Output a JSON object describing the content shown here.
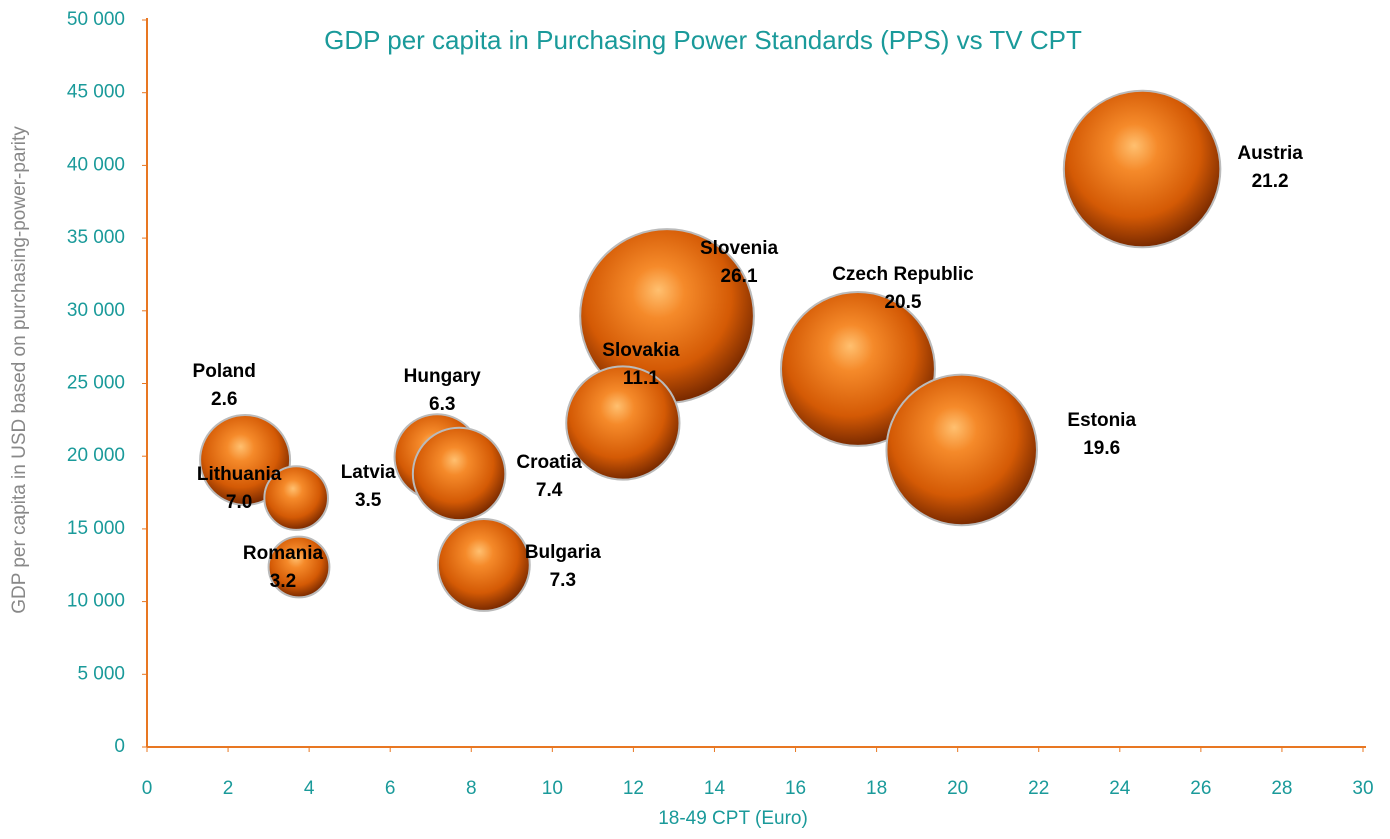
{
  "chart_data": {
    "type": "bubble",
    "title": "GDP per capita in Purchasing Power Standards (PPS) vs TV CPT",
    "x_label": "18-49 CPT (Euro)",
    "y_label": "GDP per capita in USD based on purchasing-power-parity",
    "categories": [
      "Austria",
      "Slovenia",
      "Czech Republic",
      "Estonia",
      "Slovakia",
      "Hungary",
      "Croatia",
      "Bulgaria",
      "Poland",
      "Lithuania",
      "Latvia",
      "Romania"
    ],
    "x": [
      24.55,
      12.83,
      17.54,
      20.1,
      11.74,
      7.16,
      7.7,
      8.31,
      2.3,
      2.42,
      3.68,
      3.75
    ],
    "values": [
      39750,
      29640,
      26000,
      20430,
      22280,
      19950,
      18780,
      12520,
      19200,
      19740,
      17120,
      12380
    ],
    "sizes": [
      21.2,
      26.1,
      20.5,
      19.6,
      11.1,
      6.3,
      7.4,
      7.3,
      2.6,
      7.0,
      3.5,
      3.2
    ],
    "size_labels": [
      "21.2",
      "26.1",
      "20.5",
      "19.6",
      "11.1",
      "6.3",
      "7.4",
      "7.3",
      "2.6",
      "7.0",
      "3.5",
      "3.2"
    ],
    "color": "#e86a10",
    "xlim": [
      0,
      30
    ],
    "xticks": [
      0,
      2,
      4,
      6,
      8,
      10,
      12,
      14,
      16,
      18,
      20,
      22,
      24,
      26,
      28,
      30
    ],
    "ylim": [
      0,
      50000
    ],
    "yticks": [
      0,
      {
        "value": 5000,
        "label": "5 000"
      },
      {
        "value": 10000,
        "label": "10 000"
      },
      {
        "value": 15000,
        "label": "15 000"
      },
      {
        "value": 20000,
        "label": "20 000"
      },
      {
        "value": 25000,
        "label": "25 000"
      },
      {
        "value": 30000,
        "label": "30 000"
      },
      {
        "value": 35000,
        "label": "35 000"
      },
      {
        "value": 40000,
        "label": "40 000"
      },
      {
        "value": 45000,
        "label": "45 000"
      },
      {
        "value": 50000,
        "label": "50 000"
      }
    ],
    "grid": false
  }
}
